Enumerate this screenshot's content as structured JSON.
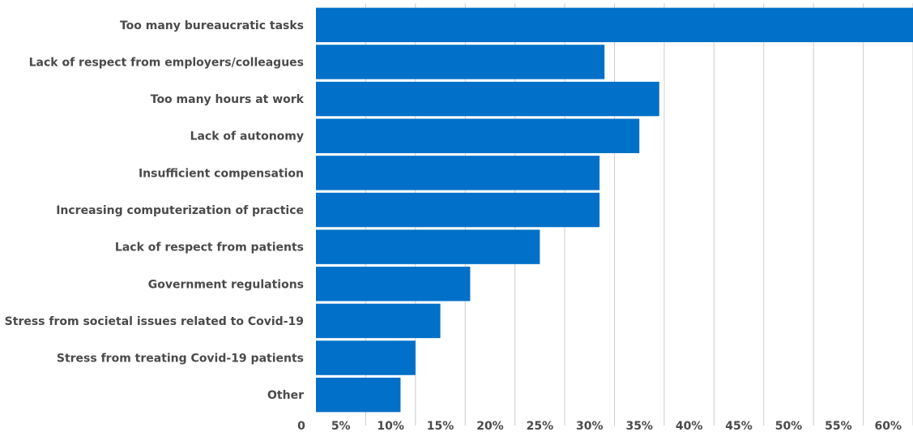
{
  "chart_data": {
    "type": "bar",
    "orientation": "horizontal",
    "categories": [
      "Too many bureaucratic tasks",
      "Lack of respect from employers/colleagues",
      "Too many hours at work",
      "Lack of autonomy",
      "Insufficient compensation",
      "Increasing computerization of practice",
      "Lack of respect from patients",
      "Government regulations",
      "Stress from societal issues related to Covid-19",
      "Stress from treating Covid-19 patients",
      "Other"
    ],
    "values": [
      60,
      29,
      34.5,
      32.5,
      28.5,
      28.5,
      22.5,
      15.5,
      12.5,
      10,
      8.5
    ],
    "x_tick_labels": [
      "0",
      "5%",
      "10%",
      "15%",
      "20%",
      "25%",
      "30%",
      "35%",
      "40%",
      "45%",
      "50%",
      "55%",
      "60%"
    ],
    "x_ticks": [
      0,
      5,
      10,
      15,
      20,
      25,
      30,
      35,
      40,
      45,
      50,
      55,
      60
    ],
    "xlim": [
      0,
      60
    ],
    "grid": "vertical",
    "bar_color": "#0070c8",
    "grid_color": "#cccccc",
    "text_color": "#4a4a4a",
    "title": "",
    "xlabel": "",
    "ylabel": ""
  }
}
